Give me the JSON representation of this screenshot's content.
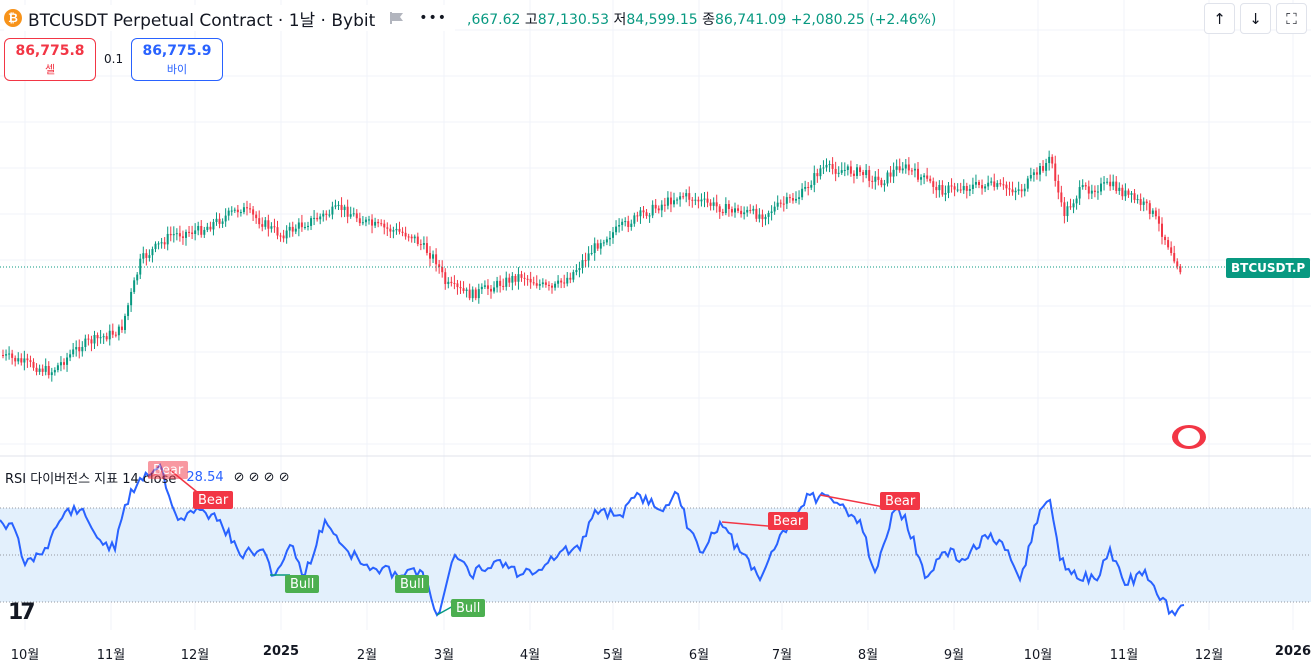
{
  "header": {
    "symbol_title": "BTCUSDT Perpetual Contract · 1날 · Bybit",
    "icon_letter": "₿",
    "more_label": "•••",
    "open_value": ",667.62",
    "high_label": "고",
    "high_value": "87,130.53",
    "low_label": "저",
    "low_value": "84,599.15",
    "close_label": "종",
    "close_value": "86,741.09",
    "change": "+2,080.25 (+2.46%)"
  },
  "nav": {
    "up_label": "↑",
    "down_label": "↓",
    "fullscreen_label": "⛶"
  },
  "order": {
    "sell_price": "86,775.8",
    "sell_label": "셀",
    "spread": "0.1",
    "buy_price": "86,775.9",
    "buy_label": "바이"
  },
  "price_tag": "BTCUSDT.P",
  "rsi": {
    "title": "RSI 다이버전스 지표 14 close",
    "value": "28.54",
    "icons": "⊘ ⊘ ⊘ ⊘"
  },
  "tv_logo": "17",
  "x_axis": [
    {
      "label": "10월",
      "bold": false
    },
    {
      "label": "11월",
      "bold": false
    },
    {
      "label": "12월",
      "bold": false
    },
    {
      "label": "2025",
      "bold": true
    },
    {
      "label": "2월",
      "bold": false
    },
    {
      "label": "3월",
      "bold": false
    },
    {
      "label": "4월",
      "bold": false
    },
    {
      "label": "5월",
      "bold": false
    },
    {
      "label": "6월",
      "bold": false
    },
    {
      "label": "7월",
      "bold": false
    },
    {
      "label": "8월",
      "bold": false
    },
    {
      "label": "9월",
      "bold": false
    },
    {
      "label": "10월",
      "bold": false
    },
    {
      "label": "11월",
      "bold": false
    },
    {
      "label": "12월",
      "bold": false
    },
    {
      "label": "2026",
      "bold": true
    }
  ],
  "divergences": [
    {
      "label": "Bear",
      "type": "bear"
    },
    {
      "label": "Bear",
      "type": "bear"
    },
    {
      "label": "Bull",
      "type": "bull"
    },
    {
      "label": "Bull",
      "type": "bull"
    },
    {
      "label": "Bull",
      "type": "bull"
    },
    {
      "label": "Bear",
      "type": "bear"
    },
    {
      "label": "Bear",
      "type": "bear"
    }
  ],
  "colors": {
    "up": "#089981",
    "down": "#f23645",
    "rsi_line": "#2962ff",
    "rsi_band": "#e3f0fc",
    "grid": "#f0f3fa"
  }
}
